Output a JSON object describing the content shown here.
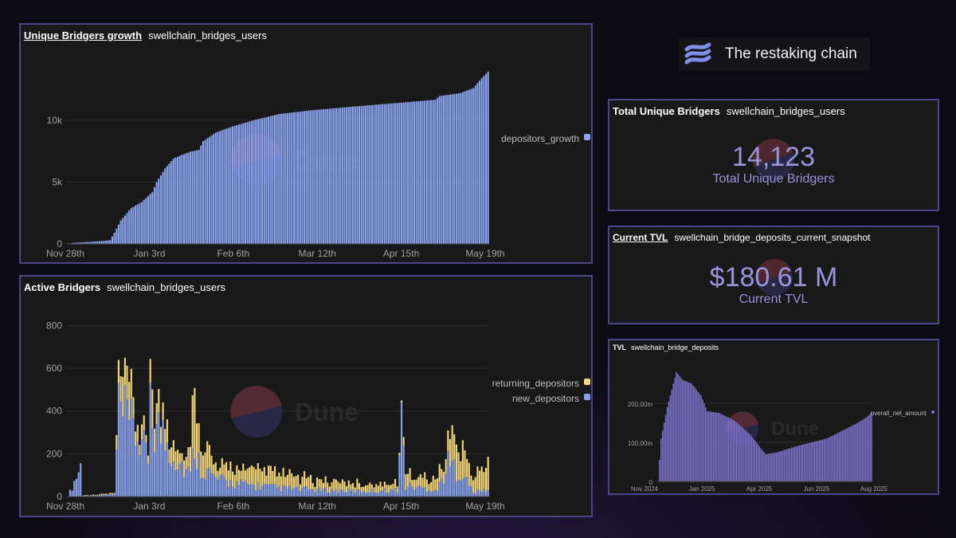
{
  "brand": {
    "text": "The restaking chain",
    "accent": "#7f8fe6"
  },
  "watermark": "Dune",
  "panels": {
    "growth": {
      "title": "Unique Bridgers growth",
      "query": "swellchain_bridges_users"
    },
    "active": {
      "title": "Active Bridgers",
      "query": "swellchain_bridges_users"
    },
    "total": {
      "title": "Total Unique Bridgers",
      "query": "swellchain_bridges_users",
      "value": "14,123",
      "label": "Total Unique Bridgers"
    },
    "tvl_now": {
      "title": "Current TVL",
      "query": "swellchain_bridge_deposits_current_snapshot",
      "value": "$180.61 M",
      "label": "Current TVL"
    },
    "tvl": {
      "title": "TVL",
      "query": "swellchain_bridge_deposits"
    }
  },
  "chart_data": [
    {
      "id": "growth",
      "type": "bar",
      "x_ticks": [
        "Nov 28th",
        "Jan 3rd",
        "Feb 6th",
        "Mar 12th",
        "Apr 15th",
        "May 19th"
      ],
      "y_ticks": [
        "0",
        "5k",
        "10k"
      ],
      "ylim": [
        0,
        14500
      ],
      "legend": [
        {
          "name": "depositors_growth",
          "color": "#8aa4f0"
        }
      ],
      "legend_position": "right",
      "series": [
        {
          "name": "depositors_growth",
          "color": "#8aa4f0",
          "anchors": [
            [
              0,
              0
            ],
            [
              1,
              0
            ],
            [
              2,
              80
            ],
            [
              10,
              160
            ],
            [
              18,
              260
            ],
            [
              20,
              300
            ],
            [
              22,
              900
            ],
            [
              25,
              1900
            ],
            [
              30,
              2900
            ],
            [
              35,
              3400
            ],
            [
              40,
              4200
            ],
            [
              42,
              5000
            ],
            [
              46,
              6100
            ],
            [
              50,
              6900
            ],
            [
              54,
              7200
            ],
            [
              58,
              7450
            ],
            [
              62,
              7600
            ],
            [
              64,
              8300
            ],
            [
              70,
              9000
            ],
            [
              78,
              9500
            ],
            [
              88,
              10000
            ],
            [
              100,
              10500
            ],
            [
              115,
              10800
            ],
            [
              135,
              11100
            ],
            [
              160,
              11450
            ],
            [
              174,
              11650
            ],
            [
              176,
              11950
            ],
            [
              186,
              12200
            ],
            [
              192,
              12600
            ],
            [
              196,
              13400
            ],
            [
              200,
              14100
            ]
          ]
        }
      ]
    },
    {
      "id": "active",
      "type": "bar",
      "stacked": true,
      "x_ticks": [
        "Nov 28th",
        "Jan 3rd",
        "Feb 6th",
        "Mar 12th",
        "Apr 15th",
        "May 19th"
      ],
      "y_ticks": [
        "0",
        "200",
        "400",
        "600",
        "800"
      ],
      "ylim": [
        0,
        880
      ],
      "legend": [
        {
          "name": "returning_depositors",
          "color": "#f4d77a"
        },
        {
          "name": "new_depositors",
          "color": "#8aa4f0"
        }
      ],
      "legend_position": "right",
      "series": [
        {
          "name": "new_depositors",
          "color": "#8aa4f0",
          "anchors": [
            [
              0,
              0
            ],
            [
              6,
              140
            ],
            [
              7,
              5
            ],
            [
              10,
              5
            ],
            [
              22,
              10
            ],
            [
              24,
              400
            ],
            [
              30,
              320
            ],
            [
              35,
              250
            ],
            [
              38,
              150
            ],
            [
              39,
              700
            ],
            [
              40,
              350
            ],
            [
              44,
              300
            ],
            [
              50,
              200
            ],
            [
              58,
              100
            ],
            [
              60,
              250
            ],
            [
              62,
              160
            ],
            [
              70,
              80
            ],
            [
              80,
              60
            ],
            [
              100,
              40
            ],
            [
              120,
              30
            ],
            [
              140,
              25
            ],
            [
              156,
              30
            ],
            [
              158,
              360
            ],
            [
              160,
              50
            ],
            [
              175,
              30
            ],
            [
              180,
              150
            ],
            [
              186,
              120
            ],
            [
              192,
              20
            ],
            [
              198,
              30
            ]
          ]
        },
        {
          "name": "returning_depositors",
          "color": "#f4d77a",
          "anchors": [
            [
              0,
              0
            ],
            [
              22,
              5
            ],
            [
              24,
              90
            ],
            [
              26,
              200
            ],
            [
              30,
              100
            ],
            [
              34,
              80
            ],
            [
              38,
              30
            ],
            [
              39,
              140
            ],
            [
              40,
              180
            ],
            [
              44,
              120
            ],
            [
              50,
              80
            ],
            [
              55,
              60
            ],
            [
              60,
              270
            ],
            [
              62,
              120
            ],
            [
              70,
              60
            ],
            [
              90,
              70
            ],
            [
              110,
              50
            ],
            [
              130,
              40
            ],
            [
              156,
              30
            ],
            [
              158,
              10
            ],
            [
              160,
              60
            ],
            [
              175,
              50
            ],
            [
              180,
              120
            ],
            [
              186,
              140
            ],
            [
              192,
              60
            ],
            [
              198,
              130
            ]
          ]
        }
      ]
    },
    {
      "id": "tvl",
      "type": "bar",
      "x_ticks": [
        "Nov 2024",
        "Jan 2025",
        "Apr 2025",
        "Jun 2025",
        "Aug 2025"
      ],
      "y_ticks": [
        "0",
        "100.00m",
        "200.00m"
      ],
      "ylim": [
        0,
        300
      ],
      "legend": [
        {
          "name": "overall_net_amount",
          "color": "#7a70c8"
        }
      ],
      "legend_position": "right",
      "series": [
        {
          "name": "overall_net_amount",
          "color": "#7a70c8",
          "anchors": [
            [
              0,
              0
            ],
            [
              2,
              110
            ],
            [
              6,
              190
            ],
            [
              12,
              280
            ],
            [
              16,
              260
            ],
            [
              22,
              250
            ],
            [
              28,
              220
            ],
            [
              32,
              180
            ],
            [
              40,
              175
            ],
            [
              50,
              155
            ],
            [
              60,
              120
            ],
            [
              70,
              70
            ],
            [
              78,
              75
            ],
            [
              90,
              90
            ],
            [
              100,
              100
            ],
            [
              110,
              110
            ],
            [
              120,
              130
            ],
            [
              130,
              150
            ],
            [
              136,
              165
            ],
            [
              140,
              180
            ]
          ]
        }
      ]
    }
  ]
}
